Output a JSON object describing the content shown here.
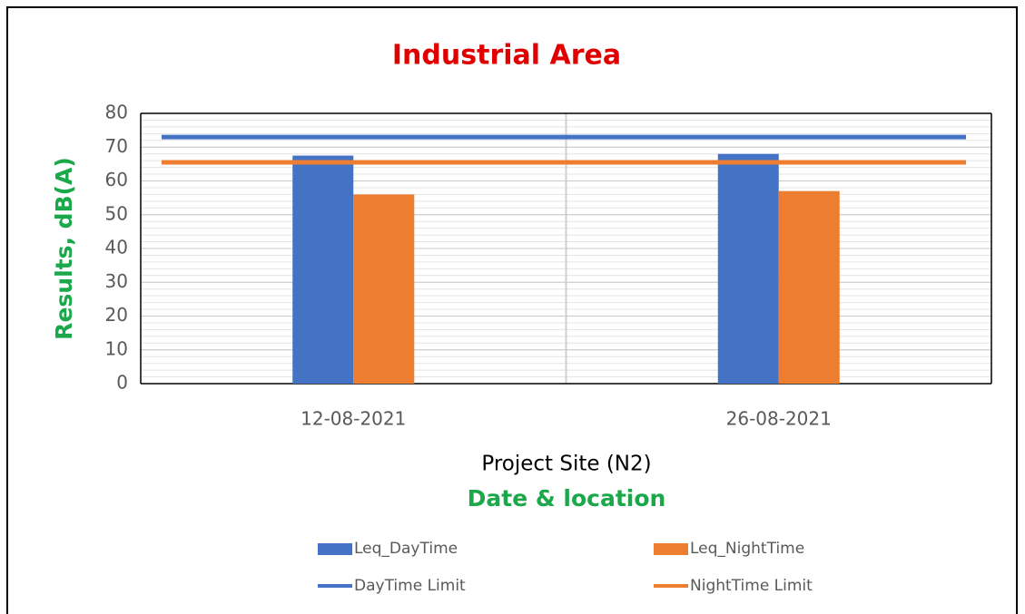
{
  "chart_data": {
    "type": "bar",
    "title": "Industrial Area",
    "y_label": "Results, dB(A)",
    "x_label": "Project Site (N2)",
    "x_label2": "Date & location",
    "categories": [
      "12-08-2021",
      "26-08-2021"
    ],
    "series": [
      {
        "name": "Leq_DayTime",
        "color": "#4472c4",
        "type": "bar",
        "values": [
          67.5,
          68
        ]
      },
      {
        "name": "Leq_NightTime",
        "color": "#ed7d31",
        "type": "bar",
        "values": [
          56,
          57
        ]
      },
      {
        "name": "DayTime Limit",
        "color": "#4472c4",
        "type": "line",
        "values": [
          73,
          73
        ]
      },
      {
        "name": "NightTime Limit",
        "color": "#ed7d31",
        "type": "line",
        "values": [
          65.5,
          65.5
        ]
      }
    ],
    "ylim": [
      0,
      80
    ],
    "yticks": [
      0,
      10,
      20,
      30,
      40,
      50,
      60,
      70,
      80
    ],
    "grid": true
  }
}
